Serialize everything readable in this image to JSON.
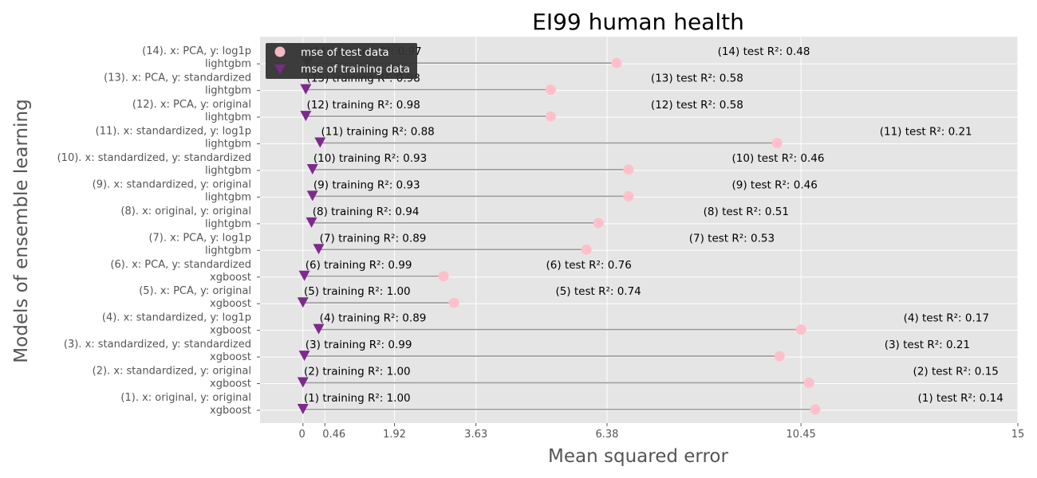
{
  "chart_data": {
    "type": "dot-plot",
    "title": "EI99 human health",
    "xlabel": "Mean squared error",
    "ylabel": "Models of ensemble learning",
    "xlim": [
      -0.9,
      15
    ],
    "x_ticks": [
      0,
      0.46,
      1.92,
      3.63,
      6.38,
      10.45,
      15
    ],
    "x_tick_labels": [
      "0",
      "0.46",
      "1.92",
      "3.63",
      "6.38",
      "10.45",
      "15"
    ],
    "grid": true,
    "legend_position": "top-left",
    "legend": [
      {
        "name": "mse of test data",
        "color": "#f4b8c1"
      },
      {
        "name": "mse of training data",
        "color": "#7b2a8a"
      }
    ],
    "colors": {
      "test": "#ffc0cb",
      "training": "#7e2a8c",
      "stem": "#999999",
      "panel": "#e5e5e5",
      "grid": "#ffffff"
    },
    "models": [
      {
        "label_line1": "(1).   x: original, y: original",
        "label_line2": "xgboost",
        "train_mse": 0.0,
        "test_mse": 10.75,
        "train_r2_label": "(1)   training R²: 1.00",
        "test_r2_label": "(1)   test R²: 0.14",
        "train_label_x": 0.02,
        "test_label_x": 12.9
      },
      {
        "label_line1": "(2).   x: standardized, y: original",
        "label_line2": "xgboost",
        "train_mse": 0.0,
        "test_mse": 10.62,
        "train_r2_label": "(2)   training R²: 1.00",
        "test_r2_label": "(2)   test R²: 0.15",
        "train_label_x": 0.02,
        "test_label_x": 12.8
      },
      {
        "label_line1": "(3).   x: standardized, y: standardized",
        "label_line2": "xgboost",
        "train_mse": 0.03,
        "test_mse": 10.0,
        "train_r2_label": "(3)   training R²: 0.99",
        "test_r2_label": "(3)   test R²: 0.21",
        "train_label_x": 0.05,
        "test_label_x": 12.2
      },
      {
        "label_line1": "(4).   x: standardized, y: log1p",
        "label_line2": "xgboost",
        "train_mse": 0.33,
        "test_mse": 10.45,
        "train_r2_label": "(4)   training R²: 0.89",
        "test_r2_label": "(4)   test R²: 0.17",
        "train_label_x": 0.35,
        "test_label_x": 12.6
      },
      {
        "label_line1": "(5).   x: PCA, y: original",
        "label_line2": "xgboost",
        "train_mse": 0.0,
        "test_mse": 3.17,
        "train_r2_label": "(5)   training R²: 1.00",
        "test_r2_label": "(5)   test R²: 0.74",
        "train_label_x": 0.02,
        "test_label_x": 5.3
      },
      {
        "label_line1": "(6).   x: PCA, y: standardized",
        "label_line2": "xgboost",
        "train_mse": 0.03,
        "test_mse": 2.95,
        "train_r2_label": "(6)   training R²: 0.99",
        "test_r2_label": "(6)   test R²: 0.76",
        "train_label_x": 0.05,
        "test_label_x": 5.1
      },
      {
        "label_line1": "(7).   x: PCA, y: log1p",
        "label_line2": "lightgbm",
        "train_mse": 0.33,
        "test_mse": 5.95,
        "train_r2_label": "(7)   training R²: 0.89",
        "test_r2_label": "(7)   test R²: 0.53",
        "train_label_x": 0.35,
        "test_label_x": 8.1
      },
      {
        "label_line1": "(8).   x: original, y: original",
        "label_line2": "lightgbm",
        "train_mse": 0.18,
        "test_mse": 6.2,
        "train_r2_label": "(8)   training R²: 0.94",
        "test_r2_label": "(8)   test R²: 0.51",
        "train_label_x": 0.2,
        "test_label_x": 8.4
      },
      {
        "label_line1": "(9).   x: standardized, y: original",
        "label_line2": "lightgbm",
        "train_mse": 0.2,
        "test_mse": 6.83,
        "train_r2_label": "(9)   training R²: 0.93",
        "test_r2_label": "(9)   test R²: 0.46",
        "train_label_x": 0.22,
        "test_label_x": 9.0
      },
      {
        "label_line1": "(10).   x: standardized, y: standardized",
        "label_line2": "lightgbm",
        "train_mse": 0.2,
        "test_mse": 6.83,
        "train_r2_label": "(10)   training R²: 0.93",
        "test_r2_label": "(10)   test R²: 0.46",
        "train_label_x": 0.22,
        "test_label_x": 9.0
      },
      {
        "label_line1": "(11).   x: standardized, y: log1p",
        "label_line2": "lightgbm",
        "train_mse": 0.36,
        "test_mse": 9.95,
        "train_r2_label": "(11)   training R²: 0.88",
        "test_r2_label": "(11)   test R²: 0.21",
        "train_label_x": 0.38,
        "test_label_x": 12.1
      },
      {
        "label_line1": "(12).   x: PCA, y: original",
        "label_line2": "lightgbm",
        "train_mse": 0.06,
        "test_mse": 5.2,
        "train_r2_label": "(12)   training R²: 0.98",
        "test_r2_label": "(12)   test R²: 0.58",
        "train_label_x": 0.08,
        "test_label_x": 7.3
      },
      {
        "label_line1": "(13).   x: PCA, y: standardized",
        "label_line2": "lightgbm",
        "train_mse": 0.06,
        "test_mse": 5.2,
        "train_r2_label": "(13)   training R²: 0.98",
        "test_r2_label": "(13)   test R²: 0.58",
        "train_label_x": 0.08,
        "test_label_x": 7.3
      },
      {
        "label_line1": "(14).   x: PCA, y: log1p",
        "label_line2": "lightgbm",
        "train_mse": 0.09,
        "test_mse": 6.58,
        "train_r2_label": "(14)   training R²: 0.97",
        "test_r2_label": "(14)   test R²: 0.48",
        "train_label_x": 0.11,
        "test_label_x": 8.7
      }
    ]
  }
}
